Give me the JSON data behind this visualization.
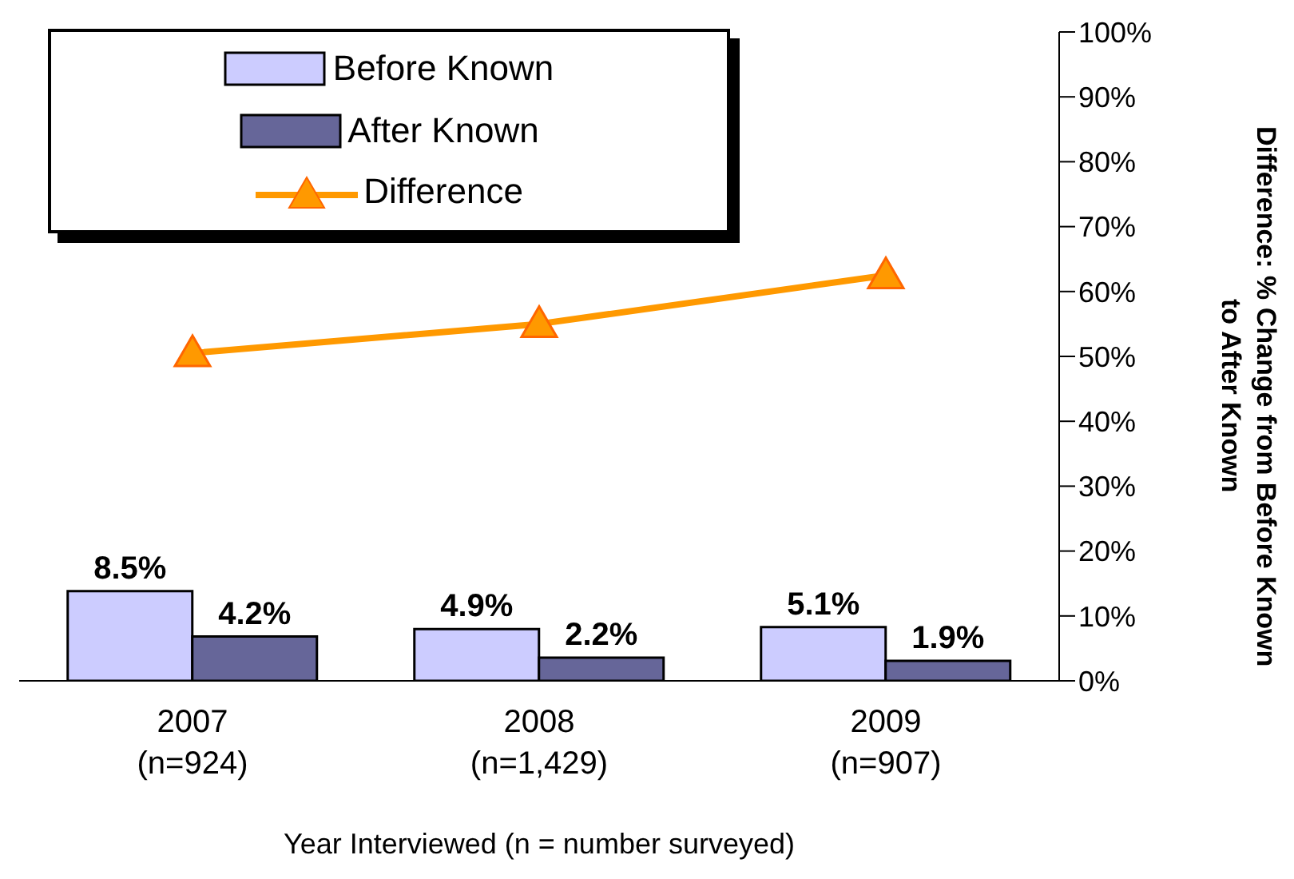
{
  "chart_data": {
    "type": "bar",
    "xlabel": "Year Interviewed (n = number surveyed)",
    "y2label": "Difference: % Change from Before Known\nto After Known",
    "categories": [
      "2007\n(n=924)",
      "2008\n(n=1,429)",
      "2009\n(n=907)"
    ],
    "series": [
      {
        "name": "Before Known",
        "color": "#ccccff",
        "values": [
          8.5,
          4.9,
          5.1
        ],
        "value_labels": [
          "8.5%",
          "4.9%",
          "5.1%"
        ]
      },
      {
        "name": "After Known",
        "color": "#666699",
        "values": [
          4.2,
          2.2,
          1.9
        ],
        "value_labels": [
          "4.2%",
          "2.2%",
          "1.9%"
        ]
      },
      {
        "name": "Difference",
        "type": "line",
        "axis": "y2",
        "color": "#ff9900",
        "marker": "triangle",
        "values": [
          50.5,
          55,
          62.5
        ]
      }
    ],
    "ylim": [
      0,
      61.5
    ],
    "y2lim": [
      0,
      100
    ],
    "y2ticks": [
      {
        "value": 0,
        "label": "0%"
      },
      {
        "value": 10,
        "label": "10%"
      },
      {
        "value": 20,
        "label": "20%"
      },
      {
        "value": 30,
        "label": "30%"
      },
      {
        "value": 40,
        "label": "40%"
      },
      {
        "value": 50,
        "label": "50%"
      },
      {
        "value": 60,
        "label": "60%"
      },
      {
        "value": 70,
        "label": "70%"
      },
      {
        "value": 80,
        "label": "80%"
      },
      {
        "value": 90,
        "label": "90%"
      },
      {
        "value": 100,
        "label": "100%"
      }
    ],
    "legend": "top left",
    "grid": false
  }
}
